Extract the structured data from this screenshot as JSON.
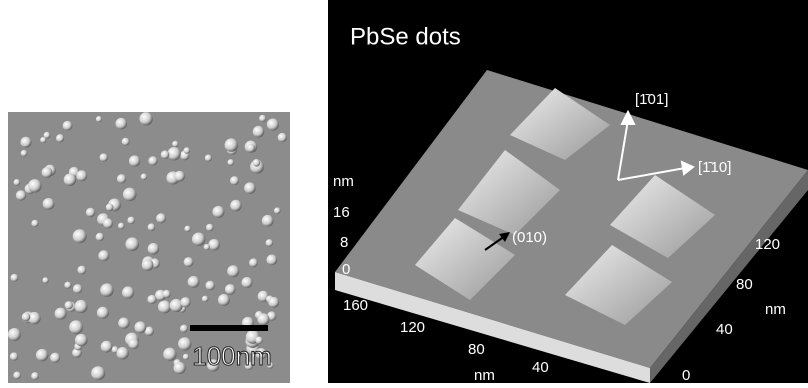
{
  "left_panel": {
    "scale_bar_label": "100nm"
  },
  "right_panel": {
    "title": "PbSe dots",
    "z_axis": {
      "unit": "nm",
      "ticks": [
        "16",
        "8",
        "0"
      ]
    },
    "x_axis": {
      "unit": "nm",
      "ticks": [
        "160",
        "120",
        "80",
        "40"
      ]
    },
    "y_axis": {
      "unit": "nm",
      "ticks": [
        "120",
        "80",
        "40",
        "0"
      ]
    },
    "directions": [
      "[1̄01]",
      "[1̄10]",
      "(010)"
    ]
  }
}
